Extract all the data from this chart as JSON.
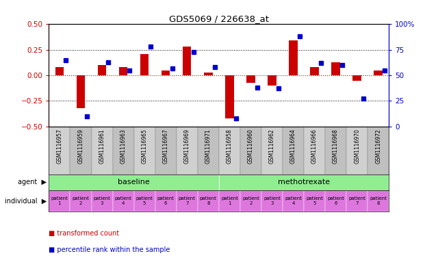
{
  "title": "GDS5069 / 226638_at",
  "samples": [
    "GSM1116957",
    "GSM1116959",
    "GSM1116961",
    "GSM1116963",
    "GSM1116965",
    "GSM1116967",
    "GSM1116969",
    "GSM1116971",
    "GSM1116958",
    "GSM1116960",
    "GSM1116962",
    "GSM1116964",
    "GSM1116966",
    "GSM1116968",
    "GSM1116970",
    "GSM1116972"
  ],
  "transformed_count": [
    0.08,
    -0.32,
    0.1,
    0.08,
    0.21,
    0.05,
    0.28,
    0.03,
    -0.42,
    -0.07,
    -0.1,
    0.34,
    0.08,
    0.13,
    -0.05,
    0.05
  ],
  "percentile_rank": [
    65,
    10,
    63,
    55,
    78,
    57,
    73,
    58,
    8,
    38,
    37,
    88,
    62,
    60,
    27,
    55
  ],
  "ylim": [
    -0.5,
    0.5
  ],
  "yticks_left": [
    -0.5,
    -0.25,
    0.0,
    0.25,
    0.5
  ],
  "yticks_right": [
    0,
    25,
    50,
    75,
    100
  ],
  "hlines": [
    -0.25,
    0.0,
    0.25
  ],
  "agent_groups": [
    {
      "label": "baseline",
      "start": 0,
      "end": 8,
      "color": "#90EE90"
    },
    {
      "label": "methotrexate",
      "start": 8,
      "end": 16,
      "color": "#90EE90"
    }
  ],
  "individual_labels": [
    "patient\n1",
    "patient\n2",
    "patient\n3",
    "patient\n4",
    "patient\n5",
    "patient\n6",
    "patient\n7",
    "patient\n8",
    "patient\n1",
    "patient\n2",
    "patient\n3",
    "patient\n4",
    "patient\n5",
    "patient\n6",
    "patient\n7",
    "patient\n8"
  ],
  "individual_bg_color": "#DD77DD",
  "bar_color": "#CC0000",
  "dot_color": "#0000CC",
  "legend_items": [
    "transformed count",
    "percentile rank within the sample"
  ],
  "legend_colors": [
    "#CC0000",
    "#0000CC"
  ],
  "background_color": "#FFFFFF",
  "sample_bg_even": "#D0D0D0",
  "sample_bg_odd": "#C0C0C0",
  "left_label_color": "#000000",
  "arrow_color": "#808080"
}
